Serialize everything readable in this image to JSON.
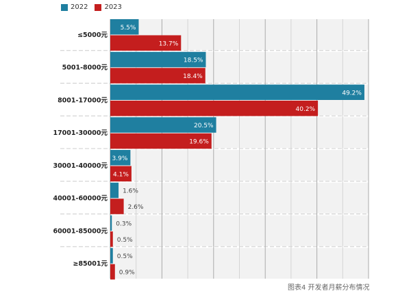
{
  "chart_data": {
    "type": "bar",
    "orientation": "horizontal",
    "categories": [
      "≤5000元",
      "5001-8000元",
      "8001-17000元",
      "17001-30000元",
      "30001-40000元",
      "40001-60000元",
      "60001-85000元",
      "≥85001元"
    ],
    "series": [
      {
        "name": "2022",
        "color": "#1f7fa0",
        "values": [
          5.5,
          18.5,
          49.2,
          20.5,
          3.9,
          1.6,
          0.3,
          0.5
        ]
      },
      {
        "name": "2023",
        "color": "#c41e1e",
        "values": [
          13.7,
          18.4,
          40.2,
          19.6,
          4.1,
          2.6,
          0.5,
          0.9
        ]
      }
    ],
    "data_labels": [
      [
        "5.5%",
        "18.5%",
        "49.2%",
        "20.5%",
        "3.9%",
        "1.6%",
        "0.3%",
        "0.5%"
      ],
      [
        "13.7%",
        "18.4%",
        "40.2%",
        "19.6%",
        "4.1%",
        "2.6%",
        "0.5%",
        "0.9%"
      ]
    ],
    "xlim": [
      0,
      50
    ],
    "grid": true,
    "legend": "top-left",
    "caption": "图表4 开发者月薪分布情况"
  }
}
